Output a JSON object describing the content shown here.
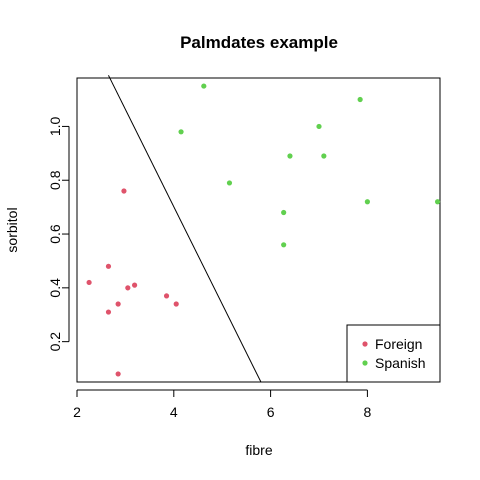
{
  "chart_data": {
    "type": "scatter",
    "title": "Palmdates example",
    "xlabel": "fibre",
    "ylabel": "sorbitol",
    "xlim": [
      2.0,
      9.5
    ],
    "ylim": [
      0.05,
      1.18
    ],
    "xticks": [
      2,
      4,
      6,
      8
    ],
    "yticks": [
      0.2,
      0.4,
      0.6,
      0.8,
      1.0
    ],
    "ytick_labels": [
      "0.2",
      "0.4",
      "0.6",
      "0.8",
      "1.0"
    ],
    "grid": false,
    "legend_position": "bottom-right",
    "series": [
      {
        "name": "Foreign",
        "color": "#DF536B",
        "points": [
          {
            "x": 2.25,
            "y": 0.42
          },
          {
            "x": 2.65,
            "y": 0.48
          },
          {
            "x": 2.97,
            "y": 0.76
          },
          {
            "x": 2.65,
            "y": 0.31
          },
          {
            "x": 2.85,
            "y": 0.34
          },
          {
            "x": 3.05,
            "y": 0.4
          },
          {
            "x": 3.19,
            "y": 0.41
          },
          {
            "x": 3.85,
            "y": 0.37
          },
          {
            "x": 4.05,
            "y": 0.34
          },
          {
            "x": 2.85,
            "y": 0.08
          }
        ]
      },
      {
        "name": "Spanish",
        "color": "#61D04F",
        "points": [
          {
            "x": 4.62,
            "y": 1.15
          },
          {
            "x": 4.15,
            "y": 0.98
          },
          {
            "x": 5.15,
            "y": 0.79
          },
          {
            "x": 6.27,
            "y": 0.68
          },
          {
            "x": 6.27,
            "y": 0.56
          },
          {
            "x": 6.4,
            "y": 0.89
          },
          {
            "x": 7.0,
            "y": 1.0
          },
          {
            "x": 7.1,
            "y": 0.89
          },
          {
            "x": 7.85,
            "y": 1.1
          },
          {
            "x": 8.0,
            "y": 0.72
          },
          {
            "x": 9.45,
            "y": 0.72
          }
        ]
      }
    ],
    "boundary_line": {
      "color": "#000000",
      "from": {
        "x": 2.65,
        "y": 1.19
      },
      "to": {
        "x": 5.8,
        "y": 0.05
      }
    }
  }
}
